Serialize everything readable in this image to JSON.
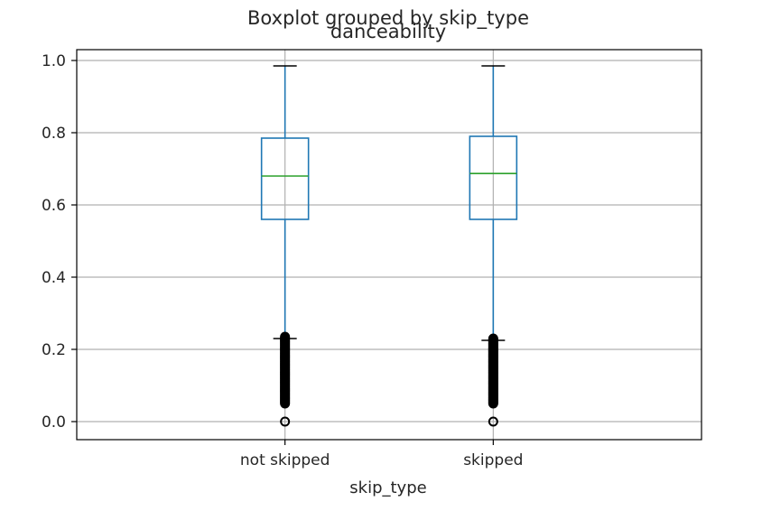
{
  "chart_data": {
    "type": "boxplot",
    "suptitle": "Boxplot grouped by skip_type",
    "title": "danceability",
    "xlabel": "skip_type",
    "ylabel": "",
    "ylim": [
      -0.05,
      1.03
    ],
    "yticks": [
      0.0,
      0.2,
      0.4,
      0.6,
      0.8,
      1.0
    ],
    "ytick_labels": [
      "0.0",
      "0.2",
      "0.4",
      "0.6",
      "0.8",
      "1.0"
    ],
    "grid": true,
    "categories": [
      "not skipped",
      "skipped"
    ],
    "boxes": [
      {
        "category": "not skipped",
        "whisker_low": 0.23,
        "q1": 0.56,
        "median": 0.68,
        "q3": 0.785,
        "whisker_high": 0.985,
        "outliers_range": [
          0.05,
          0.235
        ],
        "outliers_extra": [
          0.0
        ]
      },
      {
        "category": "skipped",
        "whisker_low": 0.225,
        "q1": 0.56,
        "median": 0.687,
        "q3": 0.79,
        "whisker_high": 0.985,
        "outliers_range": [
          0.05,
          0.23
        ],
        "outliers_extra": [
          0.0
        ]
      }
    ],
    "colors": {
      "box": "#1f77b4",
      "median": "#2ca02c",
      "whisker": "#1f77b4",
      "cap": "#000000",
      "outlier": "#000000",
      "grid": "#b0b0b0",
      "axes": "#000000"
    }
  }
}
